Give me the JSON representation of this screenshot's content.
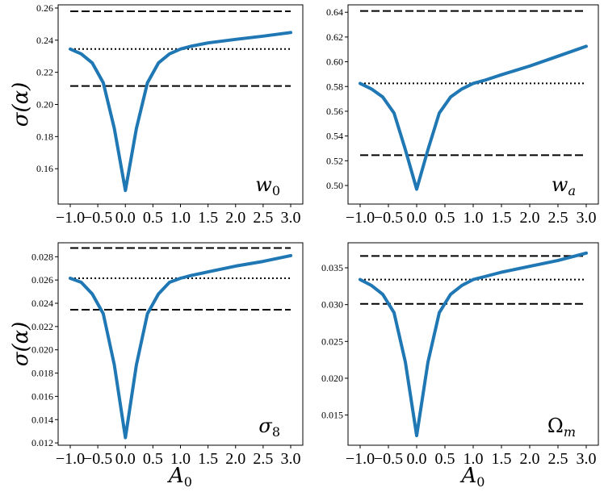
{
  "chart_data": [
    {
      "type": "line",
      "panel_label": {
        "main": "w",
        "sub": "0",
        "sub_style": "upright"
      },
      "ylabel": "σ(α)",
      "xlabel": "",
      "xlim": [
        -1.0,
        3.0
      ],
      "ylim": [
        0.138,
        0.262
      ],
      "xticks": [
        -1.0,
        -0.5,
        0.0,
        0.5,
        1.0,
        1.5,
        2.0,
        2.5,
        3.0
      ],
      "xtick_labels": [
        "−1.0",
        "−0.5",
        "0.0",
        "0.5",
        "1.0",
        "1.5",
        "2.0",
        "2.5",
        "3.0"
      ],
      "yticks": [
        0.16,
        0.18,
        0.2,
        0.22,
        0.24,
        0.26
      ],
      "ytick_labels": [
        "0.16",
        "0.18",
        "0.20",
        "0.22",
        "0.24",
        "0.26"
      ],
      "x": [
        -1.0,
        -0.8,
        -0.6,
        -0.4,
        -0.2,
        0.0,
        0.2,
        0.4,
        0.6,
        0.8,
        1.0,
        1.2,
        1.5,
        2.0,
        2.5,
        3.0
      ],
      "values": [
        0.2345,
        0.2315,
        0.2258,
        0.2135,
        0.185,
        0.1465,
        0.185,
        0.2135,
        0.2258,
        0.2315,
        0.2345,
        0.2363,
        0.2383,
        0.2405,
        0.2425,
        0.2448
      ],
      "hlines": [
        {
          "y": 0.258,
          "style": "dashed"
        },
        {
          "y": 0.2115,
          "style": "dashed"
        },
        {
          "y": 0.2345,
          "style": "dotted"
        }
      ]
    },
    {
      "type": "line",
      "panel_label": {
        "main": "w",
        "sub": "a",
        "sub_style": "italic"
      },
      "ylabel": "",
      "xlabel": "",
      "xlim": [
        -1.0,
        3.0
      ],
      "ylim": [
        0.485,
        0.646
      ],
      "xticks": [
        -1.0,
        -0.5,
        0.0,
        0.5,
        1.0,
        1.5,
        2.0,
        2.5,
        3.0
      ],
      "xtick_labels": [
        "−1.0",
        "−0.5",
        "0.0",
        "0.5",
        "1.0",
        "1.5",
        "2.0",
        "2.5",
        "3.0"
      ],
      "yticks": [
        0.5,
        0.52,
        0.54,
        0.56,
        0.58,
        0.6,
        0.62,
        0.64
      ],
      "ytick_labels": [
        "0.50",
        "0.52",
        "0.54",
        "0.56",
        "0.58",
        "0.60",
        "0.62",
        "0.64"
      ],
      "x": [
        -1.0,
        -0.8,
        -0.6,
        -0.4,
        -0.2,
        0.0,
        0.2,
        0.4,
        0.6,
        0.8,
        1.0,
        1.2,
        1.5,
        2.0,
        2.5,
        3.0
      ],
      "values": [
        0.5825,
        0.578,
        0.5715,
        0.5585,
        0.529,
        0.497,
        0.529,
        0.5585,
        0.5715,
        0.578,
        0.5825,
        0.585,
        0.5895,
        0.5965,
        0.6045,
        0.6125
      ],
      "hlines": [
        {
          "y": 0.641,
          "style": "dashed"
        },
        {
          "y": 0.5245,
          "style": "dashed"
        },
        {
          "y": 0.5825,
          "style": "dotted"
        }
      ]
    },
    {
      "type": "line",
      "panel_label": {
        "main": "σ",
        "sub": "8",
        "sub_style": "upright"
      },
      "ylabel": "σ(α)",
      "xlabel": "A0",
      "xlim": [
        -1.0,
        3.0
      ],
      "ylim": [
        0.0118,
        0.0292
      ],
      "xticks": [
        -1.0,
        -0.5,
        0.0,
        0.5,
        1.0,
        1.5,
        2.0,
        2.5,
        3.0
      ],
      "xtick_labels": [
        "−1.0",
        "−0.5",
        "0.0",
        "0.5",
        "1.0",
        "1.5",
        "2.0",
        "2.5",
        "3.0"
      ],
      "yticks": [
        0.012,
        0.014,
        0.016,
        0.018,
        0.02,
        0.022,
        0.024,
        0.026,
        0.028
      ],
      "ytick_labels": [
        "0.012",
        "0.014",
        "0.016",
        "0.018",
        "0.020",
        "0.022",
        "0.024",
        "0.026",
        "0.028"
      ],
      "x": [
        -1.0,
        -0.8,
        -0.6,
        -0.4,
        -0.2,
        0.0,
        0.2,
        0.4,
        0.6,
        0.8,
        1.0,
        1.2,
        1.5,
        2.0,
        2.5,
        3.0
      ],
      "values": [
        0.02615,
        0.0258,
        0.0248,
        0.0231,
        0.0187,
        0.01245,
        0.0187,
        0.0231,
        0.0248,
        0.0258,
        0.02615,
        0.0264,
        0.0267,
        0.0272,
        0.0276,
        0.0281
      ],
      "hlines": [
        {
          "y": 0.02875,
          "style": "dashed"
        },
        {
          "y": 0.02345,
          "style": "dashed"
        },
        {
          "y": 0.02615,
          "style": "dotted"
        }
      ]
    },
    {
      "type": "line",
      "panel_label": {
        "main": "Ω",
        "sub": "m",
        "sub_style": "italic"
      },
      "ylabel": "",
      "xlabel": "A0",
      "xlim": [
        -1.0,
        3.0
      ],
      "ylim": [
        0.0109,
        0.0384
      ],
      "xticks": [
        -1.0,
        -0.5,
        0.0,
        0.5,
        1.0,
        1.5,
        2.0,
        2.5,
        3.0
      ],
      "xtick_labels": [
        "−1.0",
        "−0.5",
        "0.0",
        "0.5",
        "1.0",
        "1.5",
        "2.0",
        "2.5",
        "3.0"
      ],
      "yticks": [
        0.015,
        0.02,
        0.025,
        0.03,
        0.035
      ],
      "ytick_labels": [
        "0.015",
        "0.020",
        "0.025",
        "0.030",
        "0.035"
      ],
      "x": [
        -1.0,
        -0.8,
        -0.6,
        -0.4,
        -0.2,
        0.0,
        0.2,
        0.4,
        0.6,
        0.8,
        1.0,
        1.2,
        1.5,
        2.0,
        2.5,
        3.0
      ],
      "values": [
        0.0334,
        0.0326,
        0.0314,
        0.0289,
        0.0222,
        0.0122,
        0.0222,
        0.0289,
        0.0314,
        0.0326,
        0.0334,
        0.0338,
        0.0344,
        0.0352,
        0.036,
        0.037
      ],
      "hlines": [
        {
          "y": 0.0366,
          "style": "dashed"
        },
        {
          "y": 0.0301,
          "style": "dashed"
        },
        {
          "y": 0.0334,
          "style": "dotted"
        }
      ]
    }
  ]
}
